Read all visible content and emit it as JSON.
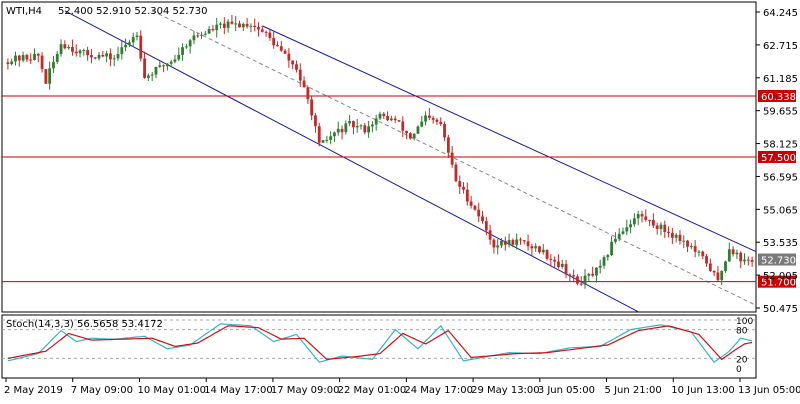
{
  "header": {
    "symbol": "WTI,H4",
    "quote": "52.400 52.910 52.304 52.730"
  },
  "colors": {
    "bull": "#2e7d32",
    "bear": "#c62828",
    "upper_channel": "#1a1aa8",
    "lower_channel": "#1a1aa8",
    "mid_channel": "#888888",
    "resistance": "#cc0000",
    "stoch_k": "#36b3c9",
    "stoch_d": "#d01010",
    "grid_dash": "#aaaaaa",
    "price_tag_bg": "#7a7a7a"
  },
  "chart_data": [
    {
      "type": "candlestick",
      "title": "WTI,H4",
      "ylim": [
        50.475,
        64.245
      ],
      "ticks": [
        "64.245",
        "62.715",
        "61.185",
        "59.655",
        "58.125",
        "56.595",
        "55.065",
        "53.535",
        "52.005",
        "50.475"
      ],
      "levels": [
        {
          "label": "60.338",
          "value": 60.338
        },
        {
          "label": "57.500",
          "value": 57.5
        },
        {
          "label": "51.700",
          "value": 51.7
        }
      ],
      "last_price": {
        "label": "52.730",
        "value": 52.73
      },
      "x_labels": [
        "2 May 2019",
        "7 May 09:00",
        "10 May 01:00",
        "14 May 17:00",
        "17 May 09:00",
        "22 May 01:00",
        "24 May 17:00",
        "29 May 13:00",
        "3 Jun 05:00",
        "5 Jun 21:00",
        "10 Jun 13:00",
        "13 Jun 05:00"
      ],
      "anchor_closes": [
        {
          "i": 0,
          "c": 62.0
        },
        {
          "i": 8,
          "c": 62.2
        },
        {
          "i": 10,
          "c": 61.0
        },
        {
          "i": 14,
          "c": 62.8
        },
        {
          "i": 20,
          "c": 62.3
        },
        {
          "i": 28,
          "c": 62.1
        },
        {
          "i": 34,
          "c": 63.3
        },
        {
          "i": 36,
          "c": 61.2
        },
        {
          "i": 44,
          "c": 62.1
        },
        {
          "i": 48,
          "c": 63.0
        },
        {
          "i": 56,
          "c": 63.6
        },
        {
          "i": 64,
          "c": 63.7
        },
        {
          "i": 68,
          "c": 63.2
        },
        {
          "i": 72,
          "c": 62.4
        },
        {
          "i": 76,
          "c": 61.6
        },
        {
          "i": 80,
          "c": 59.6
        },
        {
          "i": 82,
          "c": 58.0
        },
        {
          "i": 86,
          "c": 58.6
        },
        {
          "i": 90,
          "c": 59.0
        },
        {
          "i": 94,
          "c": 58.8
        },
        {
          "i": 98,
          "c": 59.4
        },
        {
          "i": 102,
          "c": 59.2
        },
        {
          "i": 106,
          "c": 58.4
        },
        {
          "i": 110,
          "c": 59.3
        },
        {
          "i": 114,
          "c": 59.0
        },
        {
          "i": 118,
          "c": 56.4
        },
        {
          "i": 124,
          "c": 54.8
        },
        {
          "i": 128,
          "c": 53.4
        },
        {
          "i": 134,
          "c": 53.6
        },
        {
          "i": 140,
          "c": 53.2
        },
        {
          "i": 146,
          "c": 52.4
        },
        {
          "i": 150,
          "c": 51.6
        },
        {
          "i": 156,
          "c": 52.3
        },
        {
          "i": 160,
          "c": 53.8
        },
        {
          "i": 166,
          "c": 54.8
        },
        {
          "i": 172,
          "c": 54.2
        },
        {
          "i": 178,
          "c": 53.6
        },
        {
          "i": 184,
          "c": 52.6
        },
        {
          "i": 187,
          "c": 51.7
        },
        {
          "i": 190,
          "c": 53.3
        },
        {
          "i": 194,
          "c": 52.6
        },
        {
          "i": 196,
          "c": 52.73
        }
      ],
      "channel": {
        "upper": [
          {
            "i": 67,
            "v": 63.6
          },
          {
            "i": 197,
            "v": 53.1
          }
        ],
        "mid": [
          {
            "i": 38,
            "v": 64.3
          },
          {
            "i": 197,
            "v": 50.6
          }
        ],
        "lower": [
          {
            "i": 15,
            "v": 64.3
          },
          {
            "i": 166,
            "v": 50.3
          }
        ]
      },
      "bar_count": 197
    },
    {
      "type": "line",
      "title": "Stoch(14,3,3) 56.5658 53.4172",
      "ylim": [
        0,
        100
      ],
      "ticks": [
        "100",
        "80",
        "20",
        "0"
      ],
      "levels": [
        80,
        20
      ],
      "series": [
        {
          "name": "%K",
          "anchors": [
            {
              "i": 0,
              "v": 15
            },
            {
              "i": 8,
              "v": 30
            },
            {
              "i": 14,
              "v": 78
            },
            {
              "i": 18,
              "v": 55
            },
            {
              "i": 22,
              "v": 62
            },
            {
              "i": 28,
              "v": 60
            },
            {
              "i": 36,
              "v": 66
            },
            {
              "i": 42,
              "v": 40
            },
            {
              "i": 48,
              "v": 48
            },
            {
              "i": 56,
              "v": 92
            },
            {
              "i": 64,
              "v": 88
            },
            {
              "i": 70,
              "v": 55
            },
            {
              "i": 76,
              "v": 70
            },
            {
              "i": 82,
              "v": 12
            },
            {
              "i": 88,
              "v": 25
            },
            {
              "i": 96,
              "v": 18
            },
            {
              "i": 102,
              "v": 80
            },
            {
              "i": 108,
              "v": 40
            },
            {
              "i": 114,
              "v": 88
            },
            {
              "i": 120,
              "v": 15
            },
            {
              "i": 132,
              "v": 32
            },
            {
              "i": 140,
              "v": 30
            },
            {
              "i": 148,
              "v": 42
            },
            {
              "i": 156,
              "v": 45
            },
            {
              "i": 164,
              "v": 80
            },
            {
              "i": 172,
              "v": 90
            },
            {
              "i": 180,
              "v": 75
            },
            {
              "i": 186,
              "v": 12
            },
            {
              "i": 190,
              "v": 35
            },
            {
              "i": 193,
              "v": 62
            },
            {
              "i": 196,
              "v": 56.5658
            }
          ]
        },
        {
          "name": "%D",
          "anchors": [
            {
              "i": 0,
              "v": 20
            },
            {
              "i": 10,
              "v": 35
            },
            {
              "i": 16,
              "v": 72
            },
            {
              "i": 22,
              "v": 58
            },
            {
              "i": 30,
              "v": 60
            },
            {
              "i": 38,
              "v": 62
            },
            {
              "i": 44,
              "v": 45
            },
            {
              "i": 50,
              "v": 52
            },
            {
              "i": 58,
              "v": 88
            },
            {
              "i": 66,
              "v": 84
            },
            {
              "i": 72,
              "v": 60
            },
            {
              "i": 78,
              "v": 62
            },
            {
              "i": 84,
              "v": 18
            },
            {
              "i": 92,
              "v": 24
            },
            {
              "i": 98,
              "v": 30
            },
            {
              "i": 104,
              "v": 72
            },
            {
              "i": 110,
              "v": 50
            },
            {
              "i": 116,
              "v": 78
            },
            {
              "i": 122,
              "v": 22
            },
            {
              "i": 134,
              "v": 30
            },
            {
              "i": 142,
              "v": 32
            },
            {
              "i": 150,
              "v": 40
            },
            {
              "i": 158,
              "v": 48
            },
            {
              "i": 166,
              "v": 78
            },
            {
              "i": 174,
              "v": 88
            },
            {
              "i": 182,
              "v": 70
            },
            {
              "i": 188,
              "v": 18
            },
            {
              "i": 192,
              "v": 40
            },
            {
              "i": 194,
              "v": 50
            },
            {
              "i": 196,
              "v": 53.4172
            }
          ]
        }
      ]
    }
  ]
}
